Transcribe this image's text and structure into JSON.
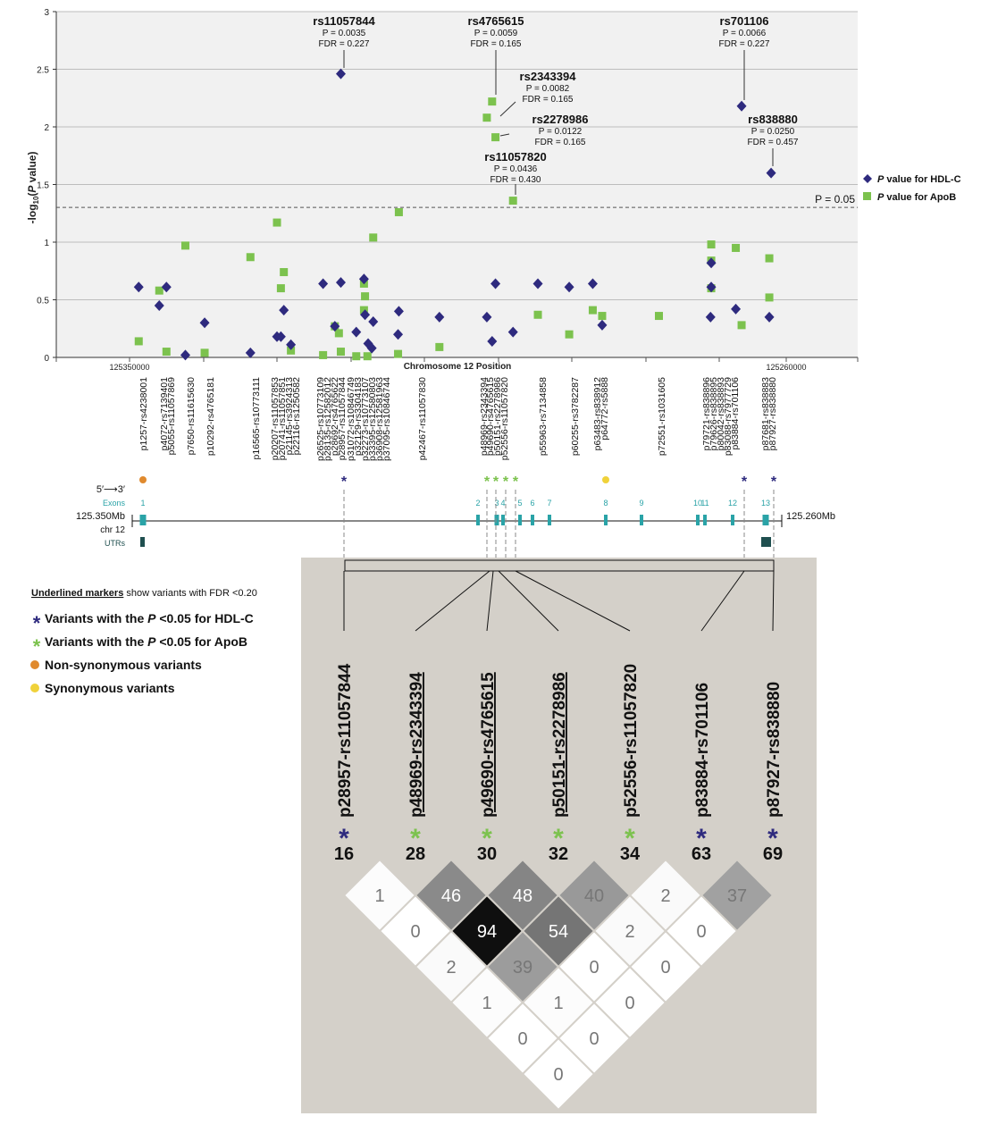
{
  "chart_data": {
    "type": "scatter",
    "ylabel": "-log10(P value)",
    "xlabel": "Chromosome 12 Position",
    "x_tick_labels": [
      "125350000",
      "125260000"
    ],
    "ylim": [
      0,
      3
    ],
    "y_ticks": [
      0,
      0.5,
      1,
      1.5,
      2,
      2.5,
      3
    ],
    "threshold": {
      "value": 1.301,
      "label": "P = 0.05"
    },
    "legend": [
      {
        "name": "P value for HDL-C",
        "color": "#2e2a7e",
        "marker": "diamond"
      },
      {
        "name": "P value for ApoB",
        "color": "#7cc24e",
        "marker": "square"
      }
    ],
    "series": [
      {
        "name": "P value for HDL-C",
        "points": [
          [
            1257,
            0.61
          ],
          [
            4072,
            0.45
          ],
          [
            5055,
            0.61
          ],
          [
            7650,
            0.02
          ],
          [
            10292,
            0.3
          ],
          [
            16565,
            0.04
          ],
          [
            20207,
            0.18
          ],
          [
            20741,
            0.18
          ],
          [
            21145,
            0.41
          ],
          [
            22116,
            0.11
          ],
          [
            26525,
            0.64
          ],
          [
            28137,
            0.27
          ],
          [
            28957,
            2.46
          ],
          [
            28957,
            0.65
          ],
          [
            31072,
            0.22
          ],
          [
            32129,
            0.68
          ],
          [
            32273,
            0.37
          ],
          [
            33395,
            0.31
          ],
          [
            32700,
            0.12
          ],
          [
            33200,
            0.08
          ],
          [
            36908,
            0.4
          ],
          [
            36800,
            0.2
          ],
          [
            42467,
            0.35
          ],
          [
            48969,
            0.35
          ],
          [
            50151,
            0.64
          ],
          [
            49690,
            0.14
          ],
          [
            52556,
            0.22
          ],
          [
            55963,
            0.64
          ],
          [
            60255,
            0.61
          ],
          [
            63483,
            0.64
          ],
          [
            64772,
            0.28
          ],
          [
            79721,
            0.82
          ],
          [
            79721,
            0.61
          ],
          [
            79626,
            0.35
          ],
          [
            83884,
            2.18
          ],
          [
            83088,
            0.42
          ],
          [
            87927,
            1.6
          ],
          [
            87681,
            0.35
          ]
        ]
      },
      {
        "name": "P value for ApoB",
        "points": [
          [
            1257,
            0.14
          ],
          [
            4072,
            0.58
          ],
          [
            5055,
            0.05
          ],
          [
            7650,
            0.97
          ],
          [
            10292,
            0.04
          ],
          [
            16565,
            0.87
          ],
          [
            20207,
            1.17
          ],
          [
            20741,
            0.6
          ],
          [
            21145,
            0.74
          ],
          [
            22116,
            0.06
          ],
          [
            26525,
            0.02
          ],
          [
            28137,
            0.27
          ],
          [
            28692,
            0.21
          ],
          [
            28957,
            0.05
          ],
          [
            31072,
            0.01
          ],
          [
            32129,
            0.41
          ],
          [
            32129,
            0.64
          ],
          [
            32273,
            0.53
          ],
          [
            33395,
            1.04
          ],
          [
            32600,
            0.01
          ],
          [
            36908,
            1.26
          ],
          [
            36800,
            0.03
          ],
          [
            42467,
            0.09
          ],
          [
            48969,
            2.08
          ],
          [
            49690,
            2.22
          ],
          [
            50151,
            1.91
          ],
          [
            52556,
            1.36
          ],
          [
            55963,
            0.37
          ],
          [
            60255,
            0.2
          ],
          [
            63483,
            0.41
          ],
          [
            64772,
            0.36
          ],
          [
            72551,
            0.36
          ],
          [
            79721,
            0.98
          ],
          [
            79721,
            0.84
          ],
          [
            79721,
            0.6
          ],
          [
            83088,
            0.95
          ],
          [
            83884,
            0.28
          ],
          [
            87681,
            0.86
          ],
          [
            87681,
            0.52
          ]
        ]
      }
    ],
    "annotations": [
      {
        "snp": "rs11057844",
        "p": "P = 0.0035",
        "fdr": "FDR = 0.227"
      },
      {
        "snp": "rs4765615",
        "p": "P = 0.0059",
        "fdr": "FDR = 0.165"
      },
      {
        "snp": "rs2343394",
        "p": "P = 0.0082",
        "fdr": "FDR = 0.165"
      },
      {
        "snp": "rs2278986",
        "p": "P = 0.0122",
        "fdr": "FDR = 0.165"
      },
      {
        "snp": "rs11057820",
        "p": "P = 0.0436",
        "fdr": "FDR = 0.430"
      },
      {
        "snp": "rs701106",
        "p": "P = 0.0066",
        "fdr": "FDR = 0.227"
      },
      {
        "snp": "rs838880",
        "p": "P = 0.0250",
        "fdr": "FDR = 0.457"
      }
    ],
    "snp_labels": [
      "p1257-rs4238001",
      "p4072-rs7139401",
      "p5055-rs11057869",
      "p7650-rs11615630",
      "p10292-rs4765181",
      "p16565-rs10773111",
      "p20207-rs11057853",
      "p20741-rs11057851",
      "p21145-rs3924313",
      "p22116-rs1250582",
      "p26525-rs10773109",
      "p28135-rs12582012",
      "p28692-rs4765622",
      "p28957-rs11057844",
      "p31072-rs10846749",
      "p32129-rs3304183",
      "p32273-rs10773107",
      "p33395-rs12580803",
      "p36908-rs12581963",
      "p37095-rs10846744",
      "p42467-rs11057830",
      "p48969-rs2343394",
      "p49690-rs4765615",
      "p50151-rs2278986",
      "p52556-rs11057820",
      "p55963-rs7134858",
      "p60255-rs3782287",
      "p63483-rs838912",
      "p64772-rs5888",
      "p72551-rs1031605",
      "p79721-rs838896",
      "p79626-rs838895",
      "p80042-rs838893",
      "p83088-rs7977729",
      "p83884-rs701106",
      "p87681-rs838883",
      "p87927-rs838880"
    ],
    "gene_track": {
      "direction": "5′⟶3′",
      "exons_label": "Exons",
      "left_pos": "125.350Mb",
      "chr_label": "chr 12",
      "utr_label": "UTRs",
      "right_pos": "125.260Mb",
      "exon_numbers": [
        "1",
        "2",
        "3",
        "4",
        "5",
        "6",
        "7",
        "8",
        "9",
        "10",
        "11",
        "12",
        "13"
      ]
    },
    "ld_legend": [
      {
        "text": "Underlined markers",
        "rest": " show variants with FDR <0.20"
      },
      {
        "symbol": "*",
        "color": "#2e2a7e",
        "prefix": "Variants with the ",
        "em": "P",
        "suffix": " <0.05 for HDL-C"
      },
      {
        "symbol": "*",
        "color": "#7cc24e",
        "prefix": "Variants with the ",
        "em": "P",
        "suffix": " <0.05 for ApoB"
      },
      {
        "symbol": "dot",
        "color": "#e08a2e",
        "prefix": "Non-synonymous variants"
      },
      {
        "symbol": "dot",
        "color": "#f0d23a",
        "prefix": "Synonymous variants"
      }
    ],
    "ld_markers": [
      {
        "label": "p28957-rs11057844",
        "num": "16",
        "star": "#2e2a7e",
        "underline": false
      },
      {
        "label": "p48969-rs2343394",
        "num": "28",
        "star": "#7cc24e",
        "underline": true
      },
      {
        "label": "p49690-rs4765615",
        "num": "30",
        "star": "#7cc24e",
        "underline": true
      },
      {
        "label": "p50151-rs2278986",
        "num": "32",
        "star": "#7cc24e",
        "underline": true
      },
      {
        "label": "p52556-rs11057820",
        "num": "34",
        "star": "#7cc24e",
        "underline": false
      },
      {
        "label": "p83884-rs701106",
        "num": "63",
        "star": "#2e2a7e",
        "underline": false
      },
      {
        "label": "p87927-rs838880",
        "num": "69",
        "star": "#2e2a7e",
        "underline": false
      }
    ],
    "ld_matrix": [
      [
        1,
        46,
        48,
        40,
        2,
        37
      ],
      [
        0,
        94,
        54,
        2,
        0
      ],
      [
        2,
        39,
        0,
        0
      ],
      [
        1,
        1,
        0
      ],
      [
        0,
        0
      ],
      [
        0
      ]
    ]
  }
}
